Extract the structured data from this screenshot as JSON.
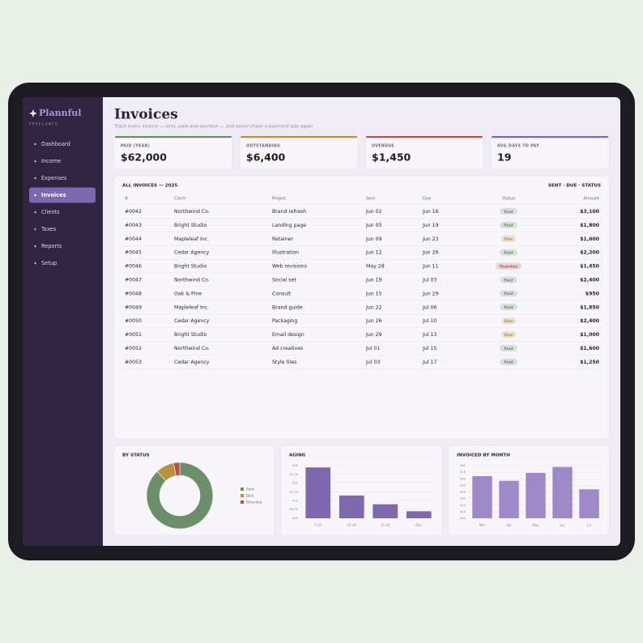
{
  "sidebar": {
    "brand": "Plannful",
    "tagline": "FREELANCE",
    "nav": [
      "Dashboard",
      "Income",
      "Expenses",
      "Invoices",
      "Clients",
      "Taxes",
      "Reports",
      "Setup"
    ],
    "active": 3
  },
  "header": {
    "title": "Invoices",
    "subtitle": "Track every invoice — sent, paid and overdue — and never chase a payment late again"
  },
  "kpis": [
    {
      "label": "PAID (YEAR)",
      "value": "$62,000",
      "color": "#6b8f6b"
    },
    {
      "label": "OUTSTANDING",
      "value": "$6,400",
      "color": "#b8913a"
    },
    {
      "label": "OVERDUE",
      "value": "$1,450",
      "color": "#b5524a"
    },
    {
      "label": "AVG DAYS TO PAY",
      "value": "19",
      "color": "#7a6aa8"
    }
  ],
  "table": {
    "title": "ALL INVOICES — 2025",
    "legend": "SENT · DUE · STATUS",
    "columns": [
      "#",
      "Client",
      "Project",
      "Sent",
      "Due",
      "Status",
      "Amount"
    ],
    "rows": [
      [
        "#0042",
        "Northwind Co.",
        "Brand refresh",
        "Jun 02",
        "Jun 16",
        "Paid",
        "$3,100"
      ],
      [
        "#0043",
        "Bright Studio",
        "Landing page",
        "Jun 05",
        "Jun 19",
        "Paid",
        "$1,800"
      ],
      [
        "#0044",
        "Mapleleaf Inc.",
        "Retainer",
        "Jun 09",
        "Jun 23",
        "Due",
        "$1,600"
      ],
      [
        "#0045",
        "Cedar Agency",
        "Illustration",
        "Jun 12",
        "Jun 26",
        "Paid",
        "$2,200"
      ],
      [
        "#0046",
        "Bright Studio",
        "Web revisions",
        "May 28",
        "Jun 11",
        "Overdue",
        "$1,450"
      ],
      [
        "#0047",
        "Northwind Co.",
        "Social set",
        "Jun 19",
        "Jul 03",
        "Paid",
        "$2,400"
      ],
      [
        "#0048",
        "Oak & Pine",
        "Consult",
        "Jun 15",
        "Jun 29",
        "Paid",
        "$950"
      ],
      [
        "#0049",
        "Mapleleaf Inc.",
        "Brand guide",
        "Jun 22",
        "Jul 06",
        "Paid",
        "$1,850"
      ],
      [
        "#0050",
        "Cedar Agency",
        "Packaging",
        "Jun 26",
        "Jul 10",
        "Due",
        "$2,400"
      ],
      [
        "#0051",
        "Bright Studio",
        "Email design",
        "Jun 29",
        "Jul 13",
        "Due",
        "$1,000"
      ],
      [
        "#0052",
        "Northwind Co.",
        "Ad creatives",
        "Jul 01",
        "Jul 15",
        "Paid",
        "$1,600"
      ],
      [
        "#0053",
        "Cedar Agency",
        "Style tiles",
        "Jul 03",
        "Jul 17",
        "Paid",
        "$1,250"
      ]
    ]
  },
  "chart_data": [
    {
      "type": "pie",
      "title": "BY STATUS",
      "categories": [
        "Paid",
        "Due",
        "Overdue"
      ],
      "values": [
        88,
        9,
        3
      ],
      "colors": [
        "#6b8f6b",
        "#b8913a",
        "#b5524a"
      ]
    },
    {
      "type": "bar",
      "title": "AGING",
      "categories": [
        "0-15",
        "16-30",
        "31-45",
        "46+"
      ],
      "values": [
        2900,
        1300,
        800,
        400
      ],
      "color": "#7f68ad",
      "ylim": [
        0,
        3000
      ],
      "yticks": [
        {
          "value": 0,
          "label": "$0k"
        },
        {
          "value": 500,
          "label": "$0.5k"
        },
        {
          "value": 1000,
          "label": "$1k"
        },
        {
          "value": 1500,
          "label": "$1.5k"
        },
        {
          "value": 2000,
          "label": "$2k"
        },
        {
          "value": 2500,
          "label": "$2.5k"
        },
        {
          "value": 3000,
          "label": "$3k"
        }
      ],
      "grid": true
    },
    {
      "type": "bar",
      "title": "INVOICED BY MONTH",
      "categories": [
        "Mar",
        "Apr",
        "May",
        "Jun",
        "Jul"
      ],
      "values": [
        6400,
        5700,
        6900,
        7800,
        4400
      ],
      "color": "#9d88c8",
      "ylim": [
        0,
        8000
      ],
      "yticks": [
        {
          "value": 0,
          "label": "$0k"
        },
        {
          "value": 1000,
          "label": "$1k"
        },
        {
          "value": 2000,
          "label": "$2k"
        },
        {
          "value": 3000,
          "label": "$3k"
        },
        {
          "value": 4000,
          "label": "$4k"
        },
        {
          "value": 5000,
          "label": "$5k"
        },
        {
          "value": 6000,
          "label": "$6k"
        },
        {
          "value": 7000,
          "label": "$7k"
        },
        {
          "value": 8000,
          "label": "$8k"
        }
      ],
      "grid": true
    }
  ]
}
